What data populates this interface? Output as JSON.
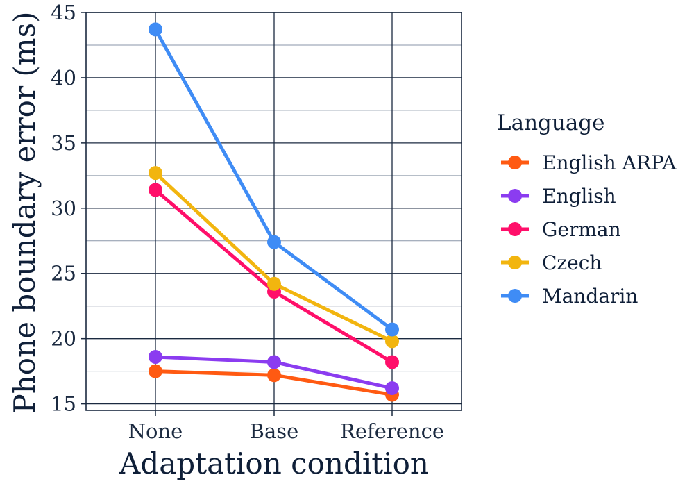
{
  "chart_data": {
    "type": "line",
    "xlabel": "Adaptation condition",
    "ylabel": "Phone boundary error (ms)",
    "categories": [
      "None",
      "Base",
      "Reference"
    ],
    "ylim": [
      14.5,
      45
    ],
    "yticks": [
      15,
      20,
      25,
      30,
      35,
      40,
      45
    ],
    "ytick_labels": [
      "15",
      "20",
      "25",
      "30",
      "35",
      "40",
      "45"
    ],
    "grid": true,
    "legend": {
      "title": "Language",
      "position": "right"
    },
    "series": [
      {
        "name": "English ARPA",
        "color": "#ff5a12",
        "values": [
          17.5,
          17.2,
          15.7
        ]
      },
      {
        "name": "English",
        "color": "#8b3cf0",
        "values": [
          18.6,
          18.2,
          16.2
        ]
      },
      {
        "name": "German",
        "color": "#ff0f6a",
        "values": [
          31.4,
          23.6,
          18.2
        ]
      },
      {
        "name": "Czech",
        "color": "#f2b50f",
        "values": [
          32.7,
          24.2,
          19.8
        ]
      },
      {
        "name": "Mandarin",
        "color": "#3f8cf5",
        "values": [
          43.7,
          27.4,
          20.7
        ]
      }
    ]
  }
}
